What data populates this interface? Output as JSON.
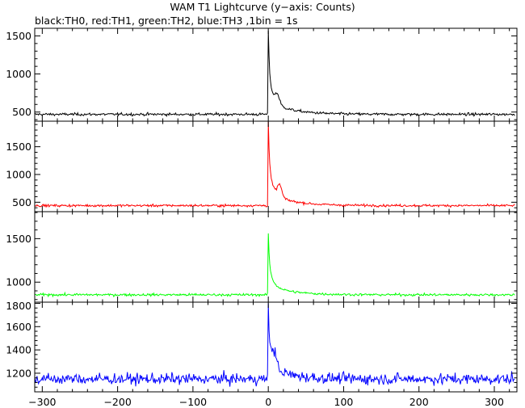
{
  "chart_data": {
    "type": "line",
    "title": "WAM T1 Lightcurve (y−axis: Counts)",
    "subtitle": "black:TH0, red:TH1, green:TH2, blue:TH3 ,1bin = 1s",
    "x": {
      "range": [
        -310,
        330
      ],
      "ticks": [
        -300,
        -200,
        -100,
        0,
        100,
        200,
        300
      ],
      "tick_labels": [
        "−300",
        "−200",
        "−100",
        "0",
        "100",
        "200",
        "300"
      ],
      "bin_seconds": 1
    },
    "series": [
      {
        "name": "TH0",
        "color": "#000000",
        "ylim": [
          380,
          1600
        ],
        "yticks": [
          500,
          1000,
          1500
        ],
        "tick_labels": [
          "500",
          "1000",
          "1500"
        ],
        "baseline": 470,
        "noise": 15,
        "peak": 1570,
        "late": [
          {
            "t": 12,
            "amp": 120
          }
        ]
      },
      {
        "name": "TH1",
        "color": "#ff0000",
        "ylim": [
          330,
          1960
        ],
        "yticks": [
          500,
          1000,
          1500
        ],
        "tick_labels": [
          "500",
          "1000",
          "1500"
        ],
        "baseline": 440,
        "noise": 18,
        "peak": 1950,
        "late": [
          {
            "t": 15,
            "amp": 210
          }
        ]
      },
      {
        "name": "TH2",
        "color": "#00ff00",
        "ylim": [
          770,
          1810
        ],
        "yticks": [
          1000,
          1500
        ],
        "tick_labels": [
          "1000",
          "1500"
        ],
        "baseline": 855,
        "noise": 12,
        "peak": 1560,
        "late": []
      },
      {
        "name": "TH3",
        "color": "#0000ff",
        "ylim": [
          1040,
          1810
        ],
        "yticks": [
          1200,
          1400,
          1600,
          1800
        ],
        "tick_labels": [
          "1200",
          "1400",
          "1600",
          "1800"
        ],
        "baseline": 1150,
        "noise": 40,
        "peak": 1800,
        "late": [
          {
            "t": 8,
            "amp": 120
          }
        ]
      }
    ]
  }
}
